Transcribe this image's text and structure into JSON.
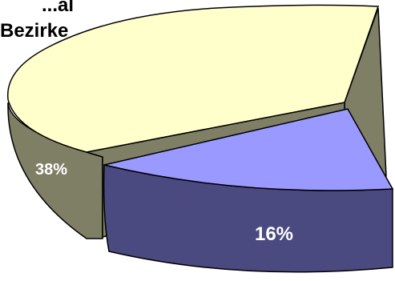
{
  "chart_data": {
    "type": "pie",
    "title_lines": [
      "...al",
      "Bezirke"
    ],
    "slices": [
      {
        "value": 38,
        "label": "38%",
        "top_color": "#FFFFCC",
        "side_color": "#7F7F66",
        "exploded": false
      },
      {
        "value": 16,
        "label": "16%",
        "top_color": "#9999FF",
        "side_color": "#4A4A80",
        "exploded": true
      }
    ],
    "visible_fraction_note_free": true,
    "legend": "none",
    "three_d": true
  }
}
